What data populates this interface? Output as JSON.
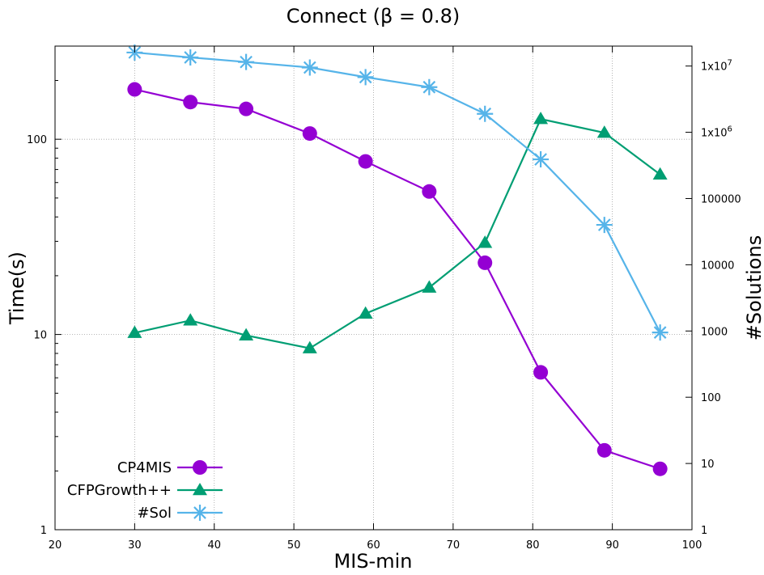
{
  "chart_data": {
    "type": "line",
    "title": "Connect (β = 0.8)",
    "xlabel": "MIS-min",
    "ylabel": "Time(s)",
    "y2label": "#Solutions",
    "xlim": [
      20,
      100
    ],
    "x_ticks": [
      20,
      30,
      40,
      50,
      60,
      70,
      80,
      90,
      100
    ],
    "x_tick_labels": [
      "20",
      "30",
      "40",
      "50",
      "60",
      "70",
      "80",
      "90",
      "100"
    ],
    "ylim": [
      1,
      300
    ],
    "y_scale": "log",
    "y_ticks": [
      1,
      10,
      100
    ],
    "y_tick_labels": [
      "1",
      "10",
      "100"
    ],
    "y2lim": [
      1,
      20000000
    ],
    "y2_scale": "log",
    "y2_ticks": [
      1,
      10,
      100,
      1000,
      10000,
      100000,
      1000000,
      10000000
    ],
    "y2_tick_labels": [
      "1",
      "10",
      "100",
      "1000",
      "10000",
      "100000",
      "1x10^6",
      "1x10^7"
    ],
    "grid": true,
    "legend_position": "bottom-left",
    "series": [
      {
        "name": "CP4MIS",
        "axis": "y",
        "color": "#9400d3",
        "marker": "circle",
        "x": [
          30,
          37,
          44,
          52,
          59,
          67,
          74,
          81,
          89,
          96
        ],
        "values": [
          180,
          155,
          143,
          107,
          77,
          54,
          23.3,
          6.4,
          2.55,
          2.05
        ]
      },
      {
        "name": "CFPGrowth++",
        "axis": "y",
        "color": "#009e73",
        "marker": "triangle",
        "x": [
          30,
          37,
          44,
          52,
          59,
          67,
          74,
          81,
          89,
          96
        ],
        "values": [
          10.2,
          11.8,
          9.9,
          8.5,
          12.8,
          17.4,
          29.5,
          127,
          108,
          66
        ]
      },
      {
        "name": "#Sol",
        "axis": "y2",
        "color": "#56b4e9",
        "marker": "star",
        "x": [
          30,
          37,
          44,
          52,
          59,
          67,
          74,
          81,
          89,
          96
        ],
        "values": [
          16000000,
          13500000,
          11500000,
          9500000,
          6800000,
          4800000,
          1900000,
          390000,
          40000,
          950
        ]
      }
    ]
  }
}
